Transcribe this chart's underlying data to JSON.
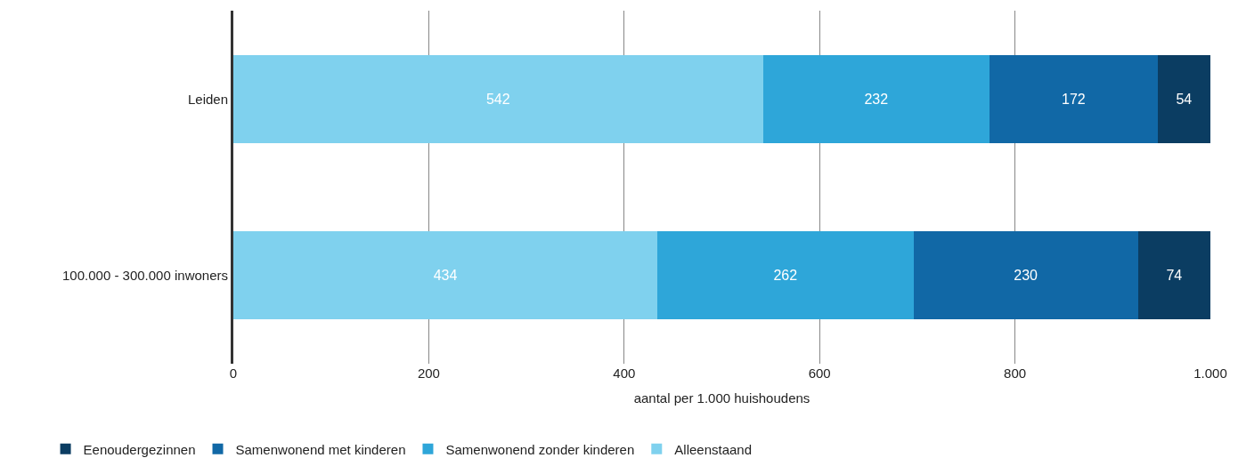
{
  "chart_data": {
    "type": "bar",
    "orientation": "horizontal",
    "stacked": true,
    "xlabel": "aantal per 1.000 huishoudens",
    "categories": [
      "Leiden",
      "100.000 - 300.000 inwoners"
    ],
    "series": [
      {
        "name": "Alleenstaand",
        "color": "#7fd1ee",
        "values": [
          542,
          434
        ]
      },
      {
        "name": "Samenwonend zonder kinderen",
        "color": "#2ea6d9",
        "values": [
          232,
          262
        ]
      },
      {
        "name": "Samenwonend met kinderen",
        "color": "#1168a6",
        "values": [
          172,
          230
        ]
      },
      {
        "name": "Eenoudergezinnen",
        "color": "#0b3d62",
        "values": [
          54,
          74
        ]
      }
    ],
    "xlim": [
      0,
      1000
    ],
    "xticks": [
      0,
      200,
      400,
      600,
      800,
      {
        "value": 1000,
        "label": "1.000"
      }
    ],
    "grid": "x",
    "legend": "bottom left",
    "data_labels": true
  }
}
